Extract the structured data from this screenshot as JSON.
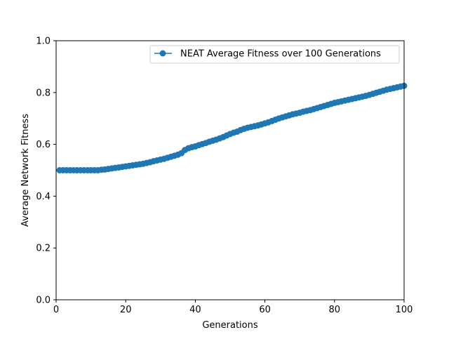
{
  "chart_data": {
    "type": "line",
    "title": "",
    "xlabel": "Generations",
    "ylabel": "Average Network Fitness",
    "xlim": [
      0,
      100
    ],
    "ylim": [
      0.0,
      1.0
    ],
    "xticks": [
      "0",
      "20",
      "40",
      "60",
      "80",
      "100"
    ],
    "yticks": [
      "0.0",
      "0.2",
      "0.4",
      "0.6",
      "0.8",
      "1.0"
    ],
    "grid": false,
    "legend_position": "top-right",
    "series": [
      {
        "name": "NEAT Average Fitness over 100 Generations",
        "color": "#1f77b4",
        "marker": "circle",
        "x": [
          1,
          2,
          3,
          4,
          5,
          6,
          7,
          8,
          9,
          10,
          11,
          12,
          13,
          14,
          15,
          16,
          17,
          18,
          19,
          20,
          21,
          22,
          23,
          24,
          25,
          26,
          27,
          28,
          29,
          30,
          31,
          32,
          33,
          34,
          35,
          36,
          37,
          38,
          39,
          40,
          41,
          42,
          43,
          44,
          45,
          46,
          47,
          48,
          49,
          50,
          51,
          52,
          53,
          54,
          55,
          56,
          57,
          58,
          59,
          60,
          61,
          62,
          63,
          64,
          65,
          66,
          67,
          68,
          69,
          70,
          71,
          72,
          73,
          74,
          75,
          76,
          77,
          78,
          79,
          80,
          81,
          82,
          83,
          84,
          85,
          86,
          87,
          88,
          89,
          90,
          91,
          92,
          93,
          94,
          95,
          96,
          97,
          98,
          99,
          100
        ],
        "y": [
          0.5,
          0.5,
          0.5,
          0.5,
          0.5,
          0.5,
          0.5,
          0.5,
          0.5,
          0.5,
          0.5,
          0.5,
          0.502,
          0.503,
          0.505,
          0.507,
          0.509,
          0.511,
          0.513,
          0.515,
          0.517,
          0.519,
          0.521,
          0.523,
          0.525,
          0.528,
          0.531,
          0.535,
          0.538,
          0.541,
          0.544,
          0.548,
          0.552,
          0.556,
          0.56,
          0.566,
          0.578,
          0.585,
          0.589,
          0.592,
          0.597,
          0.601,
          0.605,
          0.61,
          0.614,
          0.618,
          0.623,
          0.628,
          0.634,
          0.64,
          0.645,
          0.649,
          0.655,
          0.66,
          0.664,
          0.667,
          0.67,
          0.673,
          0.677,
          0.681,
          0.685,
          0.69,
          0.695,
          0.7,
          0.704,
          0.708,
          0.712,
          0.716,
          0.719,
          0.722,
          0.726,
          0.729,
          0.732,
          0.736,
          0.74,
          0.744,
          0.748,
          0.752,
          0.756,
          0.76,
          0.763,
          0.766,
          0.769,
          0.772,
          0.775,
          0.778,
          0.781,
          0.784,
          0.787,
          0.791,
          0.795,
          0.799,
          0.803,
          0.807,
          0.811,
          0.814,
          0.817,
          0.82,
          0.823,
          0.826
        ]
      }
    ]
  }
}
